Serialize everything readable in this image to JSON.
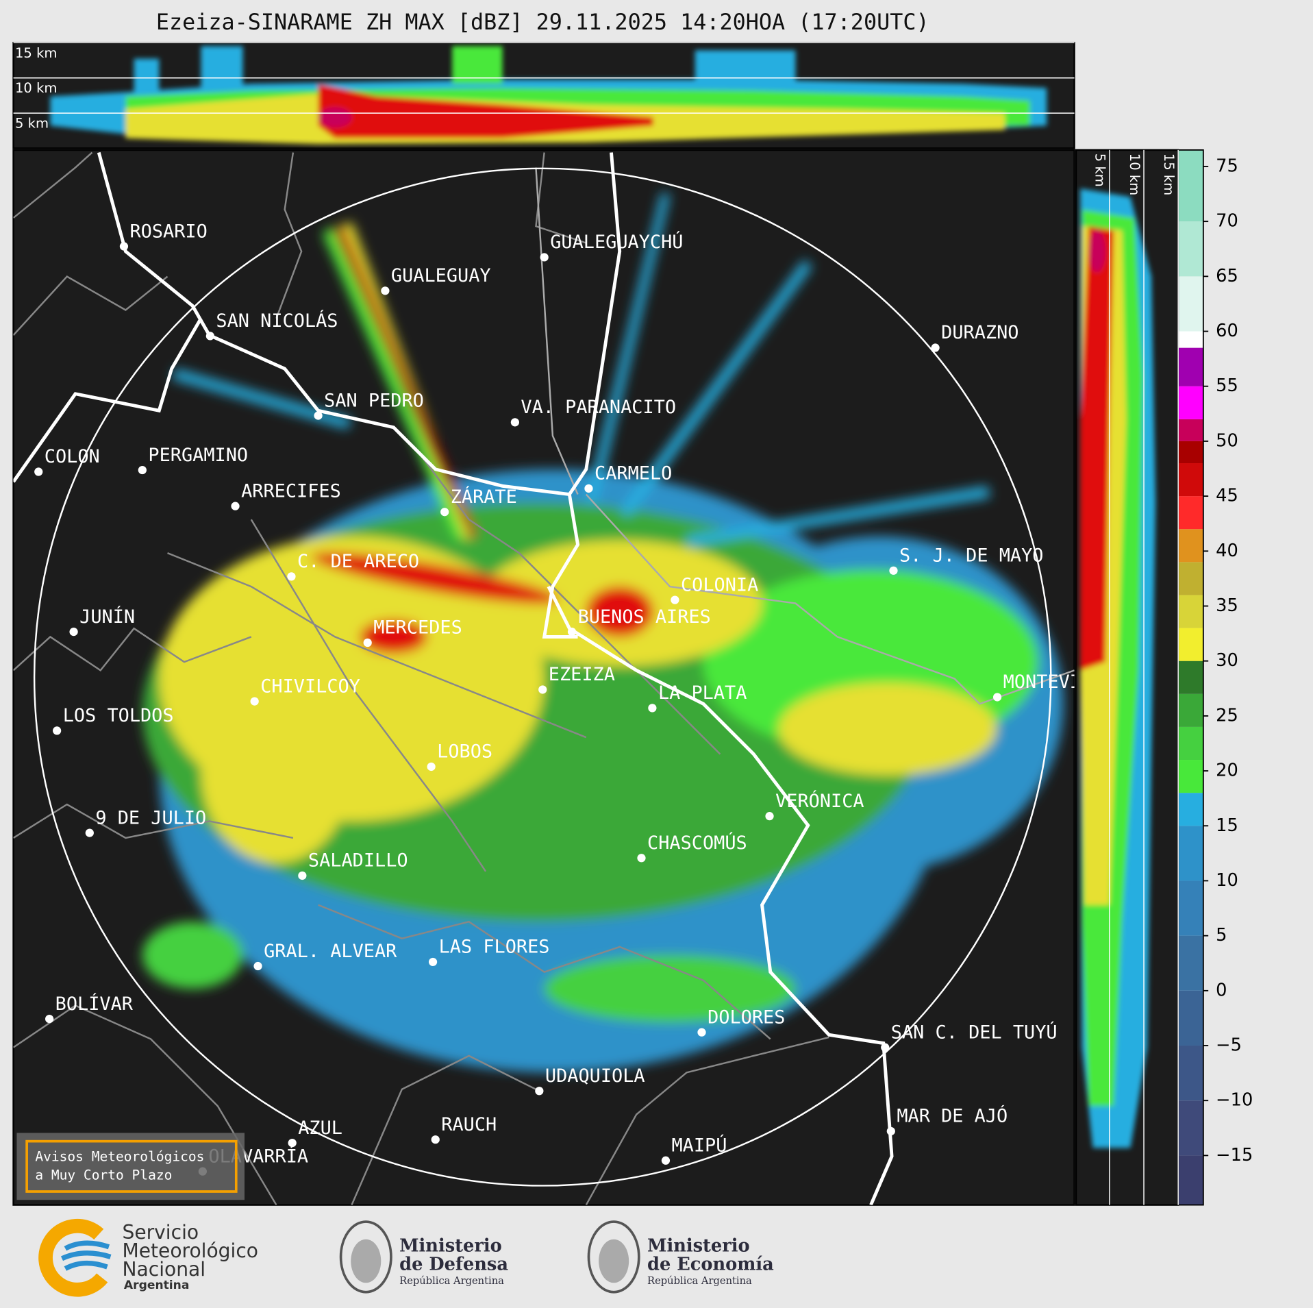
{
  "title": "Ezeiza-SINARAME ZH MAX [dBZ] 29.11.2025 14:20HOA (17:20UTC)",
  "height_scale": {
    "lim": [
      0,
      15
    ],
    "ticks": [
      {
        "value": 5,
        "label": "5 km"
      },
      {
        "value": 10,
        "label": "10 km"
      },
      {
        "value": 15,
        "label": "15 km"
      }
    ]
  },
  "colorbar": {
    "lim": [
      -19.5,
      76.5
    ],
    "ticks": [
      {
        "value": -15,
        "label": "−15"
      },
      {
        "value": -10,
        "label": "−10"
      },
      {
        "value": -5,
        "label": "−5"
      },
      0,
      5,
      10,
      15,
      20,
      25,
      30,
      35,
      40,
      45,
      50,
      55,
      60,
      65,
      70,
      75
    ],
    "segments": [
      {
        "from": -19.5,
        "to": -15,
        "color": "#3b3f6e"
      },
      {
        "from": -15,
        "to": -10,
        "color": "#3f4a7a"
      },
      {
        "from": -10,
        "to": -5,
        "color": "#3d5788"
      },
      {
        "from": -5,
        "to": 0,
        "color": "#3b6495"
      },
      {
        "from": 0,
        "to": 5,
        "color": "#3a72a3"
      },
      {
        "from": 5,
        "to": 10,
        "color": "#3581b8"
      },
      {
        "from": 10,
        "to": 15,
        "color": "#2e92c9"
      },
      {
        "from": 15,
        "to": 18,
        "color": "#27aee0"
      },
      {
        "from": 18,
        "to": 21,
        "color": "#48e83a"
      },
      {
        "from": 21,
        "to": 24,
        "color": "#45d040"
      },
      {
        "from": 24,
        "to": 27,
        "color": "#3aa838"
      },
      {
        "from": 27,
        "to": 30,
        "color": "#2e7a2a"
      },
      {
        "from": 30,
        "to": 33,
        "color": "#f2ee2e"
      },
      {
        "from": 33,
        "to": 36,
        "color": "#d8d438"
      },
      {
        "from": 36,
        "to": 39,
        "color": "#c0b030"
      },
      {
        "from": 39,
        "to": 42,
        "color": "#e0921e"
      },
      {
        "from": 42,
        "to": 45,
        "color": "#ff2a2a"
      },
      {
        "from": 45,
        "to": 48,
        "color": "#d00a0a"
      },
      {
        "from": 48,
        "to": 50,
        "color": "#a80000"
      },
      {
        "from": 50,
        "to": 52,
        "color": "#c8005a"
      },
      {
        "from": 52,
        "to": 55,
        "color": "#ff00ff"
      },
      {
        "from": 55,
        "to": 58.5,
        "color": "#a000b0"
      },
      {
        "from": 58.5,
        "to": 60,
        "color": "#ffffff"
      },
      {
        "from": 60,
        "to": 65,
        "color": "#e0f5ee"
      },
      {
        "from": 65,
        "to": 70,
        "color": "#b0e8d4"
      },
      {
        "from": 70,
        "to": 76.5,
        "color": "#8cdcc0"
      }
    ]
  },
  "cities": [
    "ROSARIO",
    "GUALEGUAYCHÚ",
    "GUALEGUAY",
    "SAN NICOLÁS",
    "DURAZNO",
    "SAN PEDRO",
    "VA. PARANACITO",
    "COLON",
    "PERGAMINO",
    "CARMELO",
    "ARRECIFES",
    "ZÁRATE",
    "C. DE ARECO",
    "S. J. DE MAYO",
    "COLONIA",
    "BUENOS AIRES",
    "JUNÍN",
    "MERCEDES",
    "MONTEVIDEO",
    "EZEIZA",
    "LA PLATA",
    "CHIVILCOY",
    "LOS TOLDOS",
    "LOBOS",
    "VERÓNICA",
    "9 DE JULIO",
    "CHASCOMÚS",
    "SALADILLO",
    "GRAL. ALVEAR",
    "LAS FLORES",
    "BOLÍVAR",
    "DOLORES",
    "SAN C. DEL TUYÚ",
    "UDAQUIOLA",
    "MAR DE AJÓ",
    "AZUL",
    "RAUCH",
    "MAIPÚ",
    "OLAVARRÍA"
  ],
  "notice": {
    "lines": [
      "Avisos Meteorológicos",
      "a Muy Corto Plazo"
    ]
  },
  "logos": {
    "smn": {
      "lines": [
        "Servicio",
        "Meteorológico",
        "Nacional"
      ],
      "country": "Argentina"
    },
    "defensa": {
      "lines": [
        "Ministerio",
        "de Defensa"
      ],
      "subtitle": "República Argentina"
    },
    "economia": {
      "lines": [
        "Ministerio",
        "de Economía"
      ],
      "subtitle": "República Argentina"
    }
  }
}
